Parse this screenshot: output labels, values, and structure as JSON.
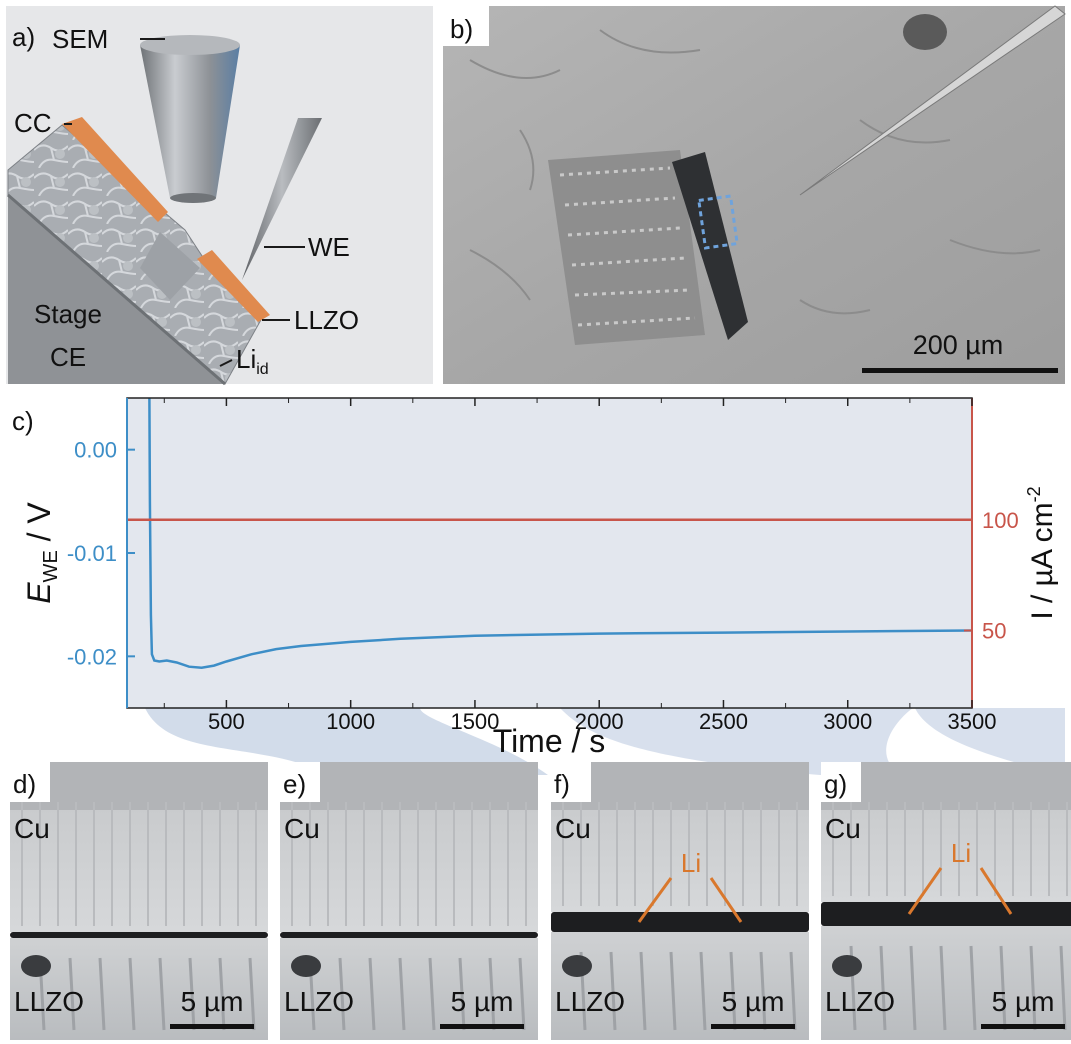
{
  "panel_a": {
    "letter": "a)",
    "sem_label": "SEM",
    "cc_label": "CC",
    "we_label": "WE",
    "llzo_label": "LLZO",
    "li_label": "Li",
    "li_subscript": "id",
    "stage_label_1": "Stage",
    "stage_label_2": "CE"
  },
  "panel_b": {
    "letter": "b)",
    "scale_label": "200 µm"
  },
  "panel_c": {
    "letter": "c)"
  },
  "chart_data": {
    "type": "line",
    "xlabel": "Time / s",
    "ylabel_left": "E",
    "ylabel_left_sub": "WE",
    "ylabel_left_unit": " / V",
    "ylabel_right": "I / µA cm",
    "ylabel_right_sup": "-2",
    "xlim": [
      100,
      3500
    ],
    "ylim_left": [
      -0.025,
      0.005
    ],
    "ylim_right": [
      15,
      155
    ],
    "x_ticks": [
      500,
      1000,
      1500,
      2000,
      2500,
      3000,
      3500
    ],
    "y_left_ticks": [
      0.0,
      -0.01,
      -0.02
    ],
    "y_left_tick_labels": [
      "0.00",
      "-0.01",
      "-0.02"
    ],
    "y_right_ticks": [
      100,
      50
    ],
    "series": [
      {
        "axis": "left",
        "color": "#3d8ec7",
        "x": [
          190,
          192,
          196,
          200,
          210,
          230,
          260,
          300,
          350,
          400,
          450,
          500,
          600,
          700,
          800,
          1000,
          1200,
          1500,
          2000,
          2500,
          3000,
          3500
        ],
        "y": [
          0.005,
          -0.005,
          -0.016,
          -0.0198,
          -0.0204,
          -0.0205,
          -0.0204,
          -0.0206,
          -0.021,
          -0.0211,
          -0.0209,
          -0.0205,
          -0.0198,
          -0.0193,
          -0.019,
          -0.0186,
          -0.0183,
          -0.018,
          -0.0178,
          -0.0177,
          -0.0176,
          -0.0175
        ]
      },
      {
        "axis": "right",
        "color": "#c8554a",
        "x": [
          100,
          3500
        ],
        "y": [
          100,
          100
        ]
      }
    ]
  },
  "panels_bottom": [
    {
      "letter": "d)",
      "top_label": "Cu",
      "bottom_label": "LLZO",
      "scale_label": "5 µm",
      "li_label": ""
    },
    {
      "letter": "e)",
      "top_label": "Cu",
      "bottom_label": "LLZO",
      "scale_label": "5 µm",
      "li_label": ""
    },
    {
      "letter": "f)",
      "top_label": "Cu",
      "bottom_label": "LLZO",
      "scale_label": "5 µm",
      "li_label": "Li"
    },
    {
      "letter": "g)",
      "top_label": "Cu",
      "bottom_label": "LLZO",
      "scale_label": "5 µm",
      "li_label": "Li"
    }
  ],
  "colors": {
    "potential": "#3d8ec7",
    "current": "#c8554a",
    "li_annotation": "#d9782d",
    "cc_copper": "#e08a4e"
  }
}
